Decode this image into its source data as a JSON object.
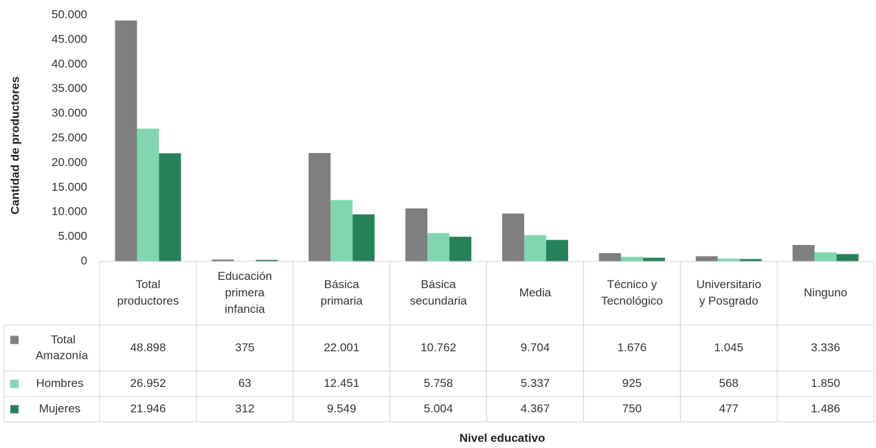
{
  "chart_data": {
    "type": "bar",
    "xlabel": "Nivel educativo",
    "ylabel": "Cantidad de productores",
    "ylim": [
      0,
      50000
    ],
    "yticks": [
      0,
      5000,
      10000,
      15000,
      20000,
      25000,
      30000,
      35000,
      40000,
      45000,
      50000
    ],
    "ytick_labels": [
      "0",
      "5.000",
      "10.000",
      "15.000",
      "20.000",
      "25.000",
      "30.000",
      "35.000",
      "40.000",
      "45.000",
      "50.000"
    ],
    "grid": false,
    "legend_placement": "data-table",
    "categories": [
      [
        "Total",
        "productores"
      ],
      [
        "Educación",
        "primera",
        "infancia"
      ],
      [
        "Básica",
        "primaria"
      ],
      [
        "Básica",
        "secundaria"
      ],
      [
        "Media"
      ],
      [
        "Técnico y",
        "Tecnológico"
      ],
      [
        "Universitario",
        "y Posgrado"
      ],
      [
        "Ninguno"
      ]
    ],
    "series": [
      {
        "name": [
          "Total",
          "Amazonía"
        ],
        "color": "#7f7f7f",
        "values": [
          48898,
          375,
          22001,
          10762,
          9704,
          1676,
          1045,
          3336
        ],
        "labels": [
          "48.898",
          "375",
          "22.001",
          "10.762",
          "9.704",
          "1.676",
          "1.045",
          "3.336"
        ]
      },
      {
        "name": [
          "Hombres"
        ],
        "color": "#7fd6b0",
        "values": [
          26952,
          63,
          12451,
          5758,
          5337,
          925,
          568,
          1850
        ],
        "labels": [
          "26.952",
          "63",
          "12.451",
          "5.758",
          "5.337",
          "925",
          "568",
          "1.850"
        ]
      },
      {
        "name": [
          "Mujeres"
        ],
        "color": "#27825c",
        "values": [
          21946,
          312,
          9549,
          5004,
          4367,
          750,
          477,
          1486
        ],
        "labels": [
          "21.946",
          "312",
          "9.549",
          "5.004",
          "4.367",
          "750",
          "477",
          "1.486"
        ]
      }
    ]
  }
}
